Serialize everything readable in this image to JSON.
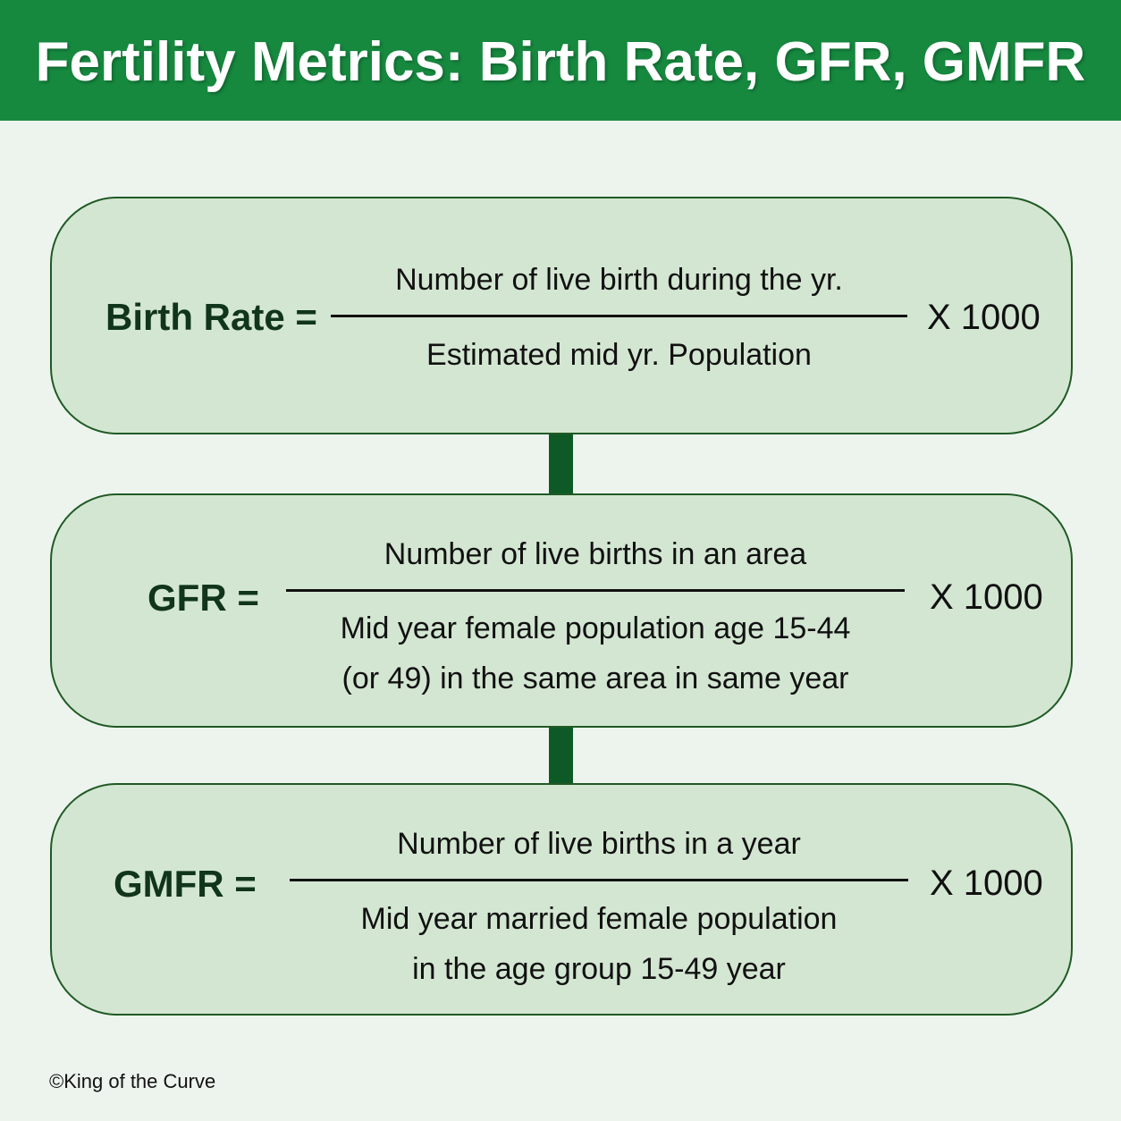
{
  "title": "Fertility Metrics: Birth Rate, GFR, GMFR",
  "formulas": [
    {
      "label": "Birth Rate =",
      "numerator": "Number of live birth during the yr.",
      "denominator": [
        "Estimated mid yr. Population"
      ],
      "multiplier": "X 1000"
    },
    {
      "label": "GFR =",
      "numerator": "Number of live births in an area",
      "denominator": [
        "Mid year female population age 15-44",
        "(or 49) in the same area in same year"
      ],
      "multiplier": "X 1000"
    },
    {
      "label": "GMFR =",
      "numerator": "Number of live births in a year",
      "denominator": [
        "Mid year married female population",
        "in the age group 15-49 year"
      ],
      "multiplier": "X 1000"
    }
  ],
  "footer": "©King of the Curve",
  "colors": {
    "header": "#16893f",
    "card_fill": "#d3e6d2",
    "card_border": "#1f5a24",
    "connector": "#0e5a26",
    "background": "#edf4ee"
  }
}
